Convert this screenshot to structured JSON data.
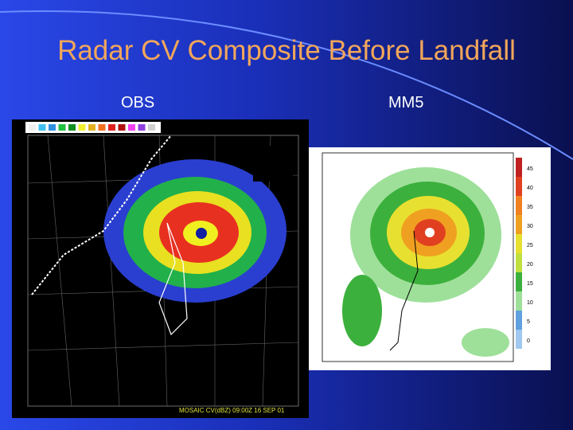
{
  "slide": {
    "title": "Radar CV Composite Before Landfall",
    "panels": [
      {
        "label": "OBS",
        "caption": "MOSAIC CV(dBZ) 09:00Z 16 SEP 01"
      },
      {
        "label": "MM5",
        "colorbar_labels": [
          "45",
          "40",
          "35",
          "30",
          "25",
          "20",
          "15",
          "10",
          "5",
          "0"
        ]
      }
    ]
  }
}
